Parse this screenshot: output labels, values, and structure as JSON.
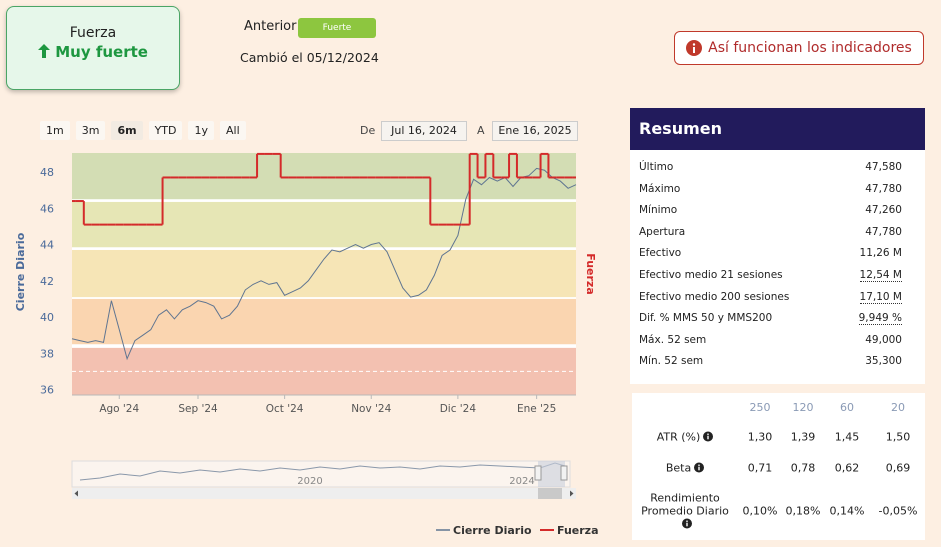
{
  "header": {
    "strength_label": "Fuerza",
    "strength_value": "Muy fuerte",
    "previous_label": "Anterior",
    "previous_value": "Fuerte",
    "changed": "Cambió el 05/12/2024",
    "help_button": "Así funcionan los indicadores"
  },
  "range_buttons": [
    "1m",
    "3m",
    "6m",
    "YTD",
    "1y",
    "All"
  ],
  "date_range": {
    "from_label": "De",
    "from": "Jul 16, 2024",
    "to_label": "A",
    "to": "Ene 16, 2025"
  },
  "chart_data": {
    "type": "line",
    "y_label": "Cierre Diario",
    "y2_label": "Fuerza",
    "categories": [
      null,
      null,
      null,
      null,
      null,
      null,
      "Ago '24",
      null,
      null,
      null,
      null,
      null,
      null,
      null,
      null,
      null,
      "Sep '24",
      null,
      null,
      null,
      null,
      null,
      null,
      null,
      null,
      null,
      null,
      "Oct '24",
      null,
      null,
      null,
      null,
      null,
      null,
      null,
      null,
      null,
      null,
      "Nov '24",
      null,
      null,
      null,
      null,
      null,
      null,
      null,
      null,
      null,
      null,
      "Dic '24",
      null,
      null,
      null,
      null,
      null,
      null,
      null,
      null,
      null,
      "Ene '25",
      null,
      null,
      null,
      null,
      null
    ],
    "series": [
      {
        "name": "Cierre Diario",
        "color": "#5f7591",
        "values": [
          38.8,
          38.7,
          38.6,
          38.7,
          38.6,
          40.9,
          39.3,
          37.7,
          38.7,
          39.0,
          39.3,
          40.1,
          40.4,
          39.9,
          40.4,
          40.6,
          40.9,
          40.8,
          40.6,
          39.9,
          40.1,
          40.6,
          41.5,
          41.8,
          42.0,
          41.8,
          41.9,
          41.2,
          41.4,
          41.6,
          42.0,
          42.6,
          43.2,
          43.7,
          43.6,
          43.8,
          44.0,
          43.8,
          44.0,
          44.1,
          43.6,
          42.6,
          41.6,
          41.1,
          41.2,
          41.5,
          42.3,
          43.4,
          43.7,
          44.5,
          46.5,
          47.6,
          47.3,
          47.7,
          47.5,
          47.7,
          47.2,
          47.7,
          47.8,
          48.2,
          48.1,
          47.7,
          47.5,
          47.1,
          47.3
        ]
      },
      {
        "name": "Fuerza",
        "color": "#d42a2a",
        "step": true,
        "values": [
          46.4,
          46.4,
          45.1,
          45.1,
          45.1,
          45.1,
          45.1,
          45.1,
          45.1,
          45.1,
          45.1,
          45.1,
          47.7,
          47.7,
          47.7,
          47.7,
          47.7,
          47.7,
          47.7,
          47.7,
          47.7,
          47.7,
          47.7,
          47.7,
          49.0,
          49.0,
          49.0,
          47.7,
          47.7,
          47.7,
          47.7,
          47.7,
          47.7,
          47.7,
          47.7,
          47.7,
          47.7,
          47.7,
          47.7,
          47.7,
          47.7,
          47.7,
          47.7,
          47.7,
          47.7,
          47.7,
          45.1,
          45.1,
          45.1,
          45.1,
          45.1,
          49.0,
          47.7,
          49.0,
          47.7,
          47.7,
          49.0,
          47.7,
          47.7,
          47.7,
          49.0,
          47.7,
          47.7,
          47.7,
          47.7
        ]
      }
    ],
    "ylim": [
      35.7,
      49.05
    ],
    "yticks": [
      36,
      38,
      40,
      42,
      44,
      46,
      48
    ],
    "bands": [
      {
        "from": 46.5,
        "to": 49.05,
        "color": "#d3ddb4"
      },
      {
        "from": 43.85,
        "to": 46.35,
        "color": "#e6e6b5"
      },
      {
        "from": 41.1,
        "to": 43.7,
        "color": "#f6e5b6"
      },
      {
        "from": 38.5,
        "to": 41.0,
        "color": "#fad5b0"
      },
      {
        "from": 35.7,
        "to": 38.3,
        "color": "#f3c1b1"
      }
    ],
    "reference_lines": [
      37.0
    ]
  },
  "navigator": {
    "labels": [
      "2020",
      "2024"
    ]
  },
  "summary": {
    "title": "Resumen",
    "rows": [
      [
        "Último",
        "47,580"
      ],
      [
        "Máximo",
        "47,780"
      ],
      [
        "Mínimo",
        "47,260"
      ],
      [
        "Apertura",
        "47,780"
      ],
      [
        "Efectivo",
        "11,26 M"
      ],
      [
        "Efectivo medio 21 sesiones",
        "12,54 M"
      ],
      [
        "Efectivo medio 200 sesiones",
        "17,10 M"
      ],
      [
        "Dif. % MMS 50 y MMS200",
        "9,949 %"
      ],
      [
        "Máx. 52 sem",
        "49,000"
      ],
      [
        "Mín. 52 sem",
        "35,300"
      ]
    ]
  },
  "atr": {
    "headers": [
      "250",
      "120",
      "60",
      "20"
    ],
    "rows": [
      {
        "label": "ATR (%)",
        "values": [
          "1,30",
          "1,39",
          "1,45",
          "1,50"
        ]
      },
      {
        "label": "Beta",
        "values": [
          "0,71",
          "0,78",
          "0,62",
          "0,69"
        ]
      },
      {
        "label": "Rendimiento Promedio Diario",
        "values": [
          "0,10%",
          "0,18%",
          "0,14%",
          "-0,05%"
        ]
      }
    ]
  }
}
